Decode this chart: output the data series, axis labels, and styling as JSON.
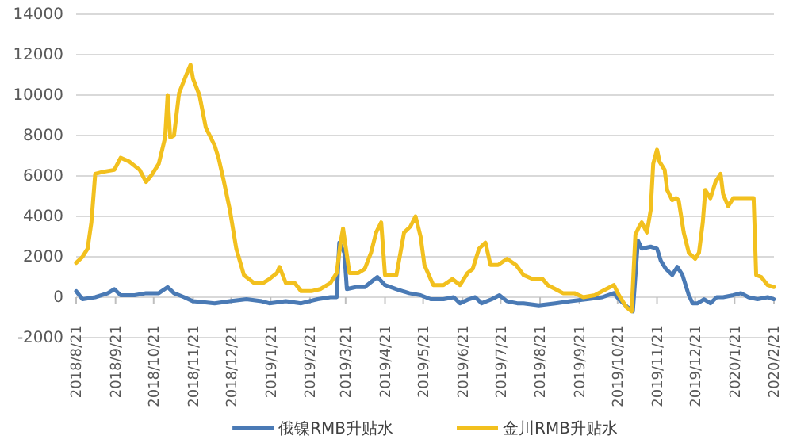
{
  "chart_data": {
    "type": "line",
    "ylim": [
      -2000,
      14000
    ],
    "yticks": [
      -2000,
      0,
      2000,
      4000,
      6000,
      8000,
      10000,
      12000,
      14000
    ],
    "xlim": [
      "2018-08-21",
      "2020-02-21"
    ],
    "xticks": [
      {
        "value": "2018-08-21",
        "label": "2018/8/21"
      },
      {
        "value": "2018-09-21",
        "label": "2018/9/21"
      },
      {
        "value": "2018-10-21",
        "label": "2018/10/21"
      },
      {
        "value": "2018-11-21",
        "label": "2018/11/21"
      },
      {
        "value": "2018-12-21",
        "label": "2018/12/21"
      },
      {
        "value": "2019-01-21",
        "label": "2019/1/21"
      },
      {
        "value": "2019-02-21",
        "label": "2019/2/21"
      },
      {
        "value": "2019-03-21",
        "label": "2019/3/21"
      },
      {
        "value": "2019-04-21",
        "label": "2019/4/21"
      },
      {
        "value": "2019-05-21",
        "label": "2019/5/21"
      },
      {
        "value": "2019-06-21",
        "label": "2019/6/21"
      },
      {
        "value": "2019-07-21",
        "label": "2019/7/21"
      },
      {
        "value": "2019-08-21",
        "label": "2019/8/21"
      },
      {
        "value": "2019-09-21",
        "label": "2019/9/21"
      },
      {
        "value": "2019-10-21",
        "label": "2019/10/21"
      },
      {
        "value": "2019-11-21",
        "label": "2019/11/21"
      },
      {
        "value": "2019-12-21",
        "label": "2019/12/21"
      },
      {
        "value": "2020-01-21",
        "label": "2020/1/21"
      },
      {
        "value": "2020-02-21",
        "label": "2020/2/21"
      }
    ],
    "grid": "y",
    "legend": "bottom",
    "line_style": "solid",
    "marker": "none",
    "series": [
      {
        "name": "俄镍RMB升贴水",
        "color": "#4a7ab5",
        "x": [
          "2018-08-21",
          "2018-08-26",
          "2018-09-05",
          "2018-09-15",
          "2018-09-20",
          "2018-09-25",
          "2018-10-06",
          "2018-10-15",
          "2018-10-25",
          "2018-11-01",
          "2018-11-06",
          "2018-11-14",
          "2018-11-21",
          "2018-12-08",
          "2018-12-20",
          "2019-01-02",
          "2019-01-14",
          "2019-01-20",
          "2019-02-02",
          "2019-02-14",
          "2019-02-27",
          "2019-03-09",
          "2019-03-14",
          "2019-03-16",
          "2019-03-20",
          "2019-03-22",
          "2019-03-29",
          "2019-04-05",
          "2019-04-13",
          "2019-04-15",
          "2019-04-21",
          "2019-04-30",
          "2019-05-10",
          "2019-05-19",
          "2019-05-27",
          "2019-06-06",
          "2019-06-14",
          "2019-06-19",
          "2019-06-26",
          "2019-07-01",
          "2019-07-06",
          "2019-07-14",
          "2019-07-20",
          "2019-07-26",
          "2019-08-03",
          "2019-08-08",
          "2019-08-20",
          "2019-09-02",
          "2019-09-14",
          "2019-09-27",
          "2019-10-09",
          "2019-10-18",
          "2019-10-22",
          "2019-10-29",
          "2019-11-02",
          "2019-11-06",
          "2019-11-09",
          "2019-11-16",
          "2019-11-21",
          "2019-11-24",
          "2019-11-28",
          "2019-12-03",
          "2019-12-07",
          "2019-12-11",
          "2019-12-16",
          "2019-12-19",
          "2019-12-23",
          "2019-12-28",
          "2020-01-02",
          "2020-01-07",
          "2020-01-12",
          "2020-01-20",
          "2020-01-26",
          "2020-02-01",
          "2020-02-08",
          "2020-02-16",
          "2020-02-21"
        ],
        "values": [
          300,
          -100,
          0,
          200,
          400,
          100,
          100,
          200,
          200,
          500,
          200,
          0,
          -200,
          -300,
          -200,
          -100,
          -200,
          -300,
          -200,
          -300,
          -100,
          0,
          0,
          2700,
          2200,
          400,
          500,
          500,
          900,
          1000,
          600,
          400,
          200,
          100,
          -100,
          -100,
          0,
          -300,
          -100,
          0,
          -300,
          -100,
          100,
          -200,
          -300,
          -300,
          -400,
          -300,
          -200,
          -100,
          0,
          200,
          -100,
          -500,
          -700,
          2800,
          2400,
          2500,
          2400,
          1800,
          1400,
          1100,
          1500,
          1100,
          100,
          -300,
          -300,
          -100,
          -300,
          0,
          0,
          100,
          200,
          0,
          -100,
          0,
          -100
        ]
      },
      {
        "name": "金川RMB升贴水",
        "color": "#f2c01e",
        "x": [
          "2018-08-21",
          "2018-08-26",
          "2018-08-30",
          "2018-09-02",
          "2018-09-05",
          "2018-09-11",
          "2018-09-20",
          "2018-09-25",
          "2018-10-02",
          "2018-10-10",
          "2018-10-15",
          "2018-10-20",
          "2018-10-25",
          "2018-10-30",
          "2018-11-01",
          "2018-11-03",
          "2018-11-06",
          "2018-11-10",
          "2018-11-15",
          "2018-11-19",
          "2018-11-21",
          "2018-11-26",
          "2018-12-01",
          "2018-12-08",
          "2018-12-11",
          "2018-12-15",
          "2018-12-20",
          "2018-12-25",
          "2018-12-31",
          "2019-01-08",
          "2019-01-15",
          "2019-01-20",
          "2019-01-26",
          "2019-01-28",
          "2019-02-02",
          "2019-02-09",
          "2019-02-14",
          "2019-02-22",
          "2019-03-01",
          "2019-03-09",
          "2019-03-14",
          "2019-03-17",
          "2019-03-19",
          "2019-03-24",
          "2019-03-31",
          "2019-04-05",
          "2019-04-10",
          "2019-04-14",
          "2019-04-18",
          "2019-04-21",
          "2019-04-30",
          "2019-05-06",
          "2019-05-11",
          "2019-05-15",
          "2019-05-19",
          "2019-05-22",
          "2019-05-29",
          "2019-06-06",
          "2019-06-13",
          "2019-06-19",
          "2019-06-25",
          "2019-06-29",
          "2019-07-04",
          "2019-07-09",
          "2019-07-13",
          "2019-07-19",
          "2019-07-26",
          "2019-08-02",
          "2019-08-08",
          "2019-08-15",
          "2019-08-23",
          "2019-08-27",
          "2019-09-02",
          "2019-09-08",
          "2019-09-17",
          "2019-09-24",
          "2019-10-03",
          "2019-10-12",
          "2019-10-18",
          "2019-10-22",
          "2019-10-28",
          "2019-11-01",
          "2019-11-04",
          "2019-11-07",
          "2019-11-09",
          "2019-11-13",
          "2019-11-16",
          "2019-11-18",
          "2019-11-21",
          "2019-11-23",
          "2019-11-27",
          "2019-11-29",
          "2019-12-03",
          "2019-12-06",
          "2019-12-08",
          "2019-12-12",
          "2019-12-16",
          "2019-12-21",
          "2019-12-24",
          "2019-12-27",
          "2019-12-29",
          "2020-01-02",
          "2020-01-06",
          "2020-01-10",
          "2020-01-12",
          "2020-01-16",
          "2020-01-20",
          "2020-01-30",
          "2020-02-05",
          "2020-02-07",
          "2020-02-11",
          "2020-02-16",
          "2020-02-21"
        ],
        "values": [
          1700,
          2000,
          2400,
          3700,
          6100,
          6200,
          6300,
          6900,
          6700,
          6300,
          5700,
          6100,
          6600,
          7900,
          10000,
          7900,
          8000,
          10100,
          10900,
          11500,
          10800,
          10000,
          8400,
          7500,
          6900,
          5800,
          4300,
          2400,
          1100,
          700,
          700,
          900,
          1200,
          1500,
          700,
          700,
          300,
          300,
          400,
          700,
          1200,
          2700,
          3400,
          1200,
          1200,
          1400,
          2200,
          3200,
          3700,
          1100,
          1100,
          3200,
          3500,
          4000,
          3000,
          1600,
          600,
          600,
          900,
          600,
          1200,
          1400,
          2400,
          2700,
          1600,
          1600,
          1900,
          1600,
          1100,
          900,
          900,
          600,
          400,
          200,
          200,
          0,
          100,
          400,
          600,
          100,
          -500,
          -700,
          3100,
          3500,
          3700,
          3200,
          4300,
          6600,
          7300,
          6700,
          6300,
          5300,
          4800,
          4900,
          4800,
          3200,
          2200,
          1900,
          2200,
          3700,
          5300,
          4900,
          5700,
          6100,
          5100,
          4500,
          4900,
          4900,
          4900,
          1100,
          1000,
          600,
          500
        ]
      }
    ]
  }
}
